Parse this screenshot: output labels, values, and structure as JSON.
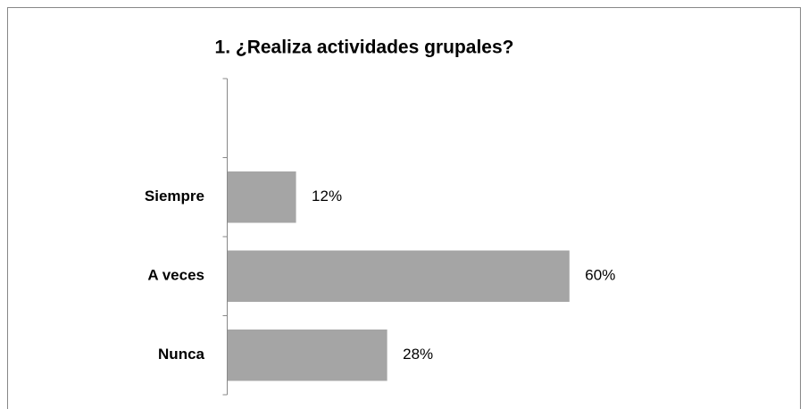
{
  "chart_data": {
    "type": "barh",
    "title": "1.  ¿Realiza actividades grupales?",
    "categories": [
      null,
      "Siempre",
      "A veces",
      "Nunca"
    ],
    "values": [
      null,
      12,
      60,
      28
    ],
    "value_labels": [
      null,
      "12%",
      "60%",
      "28%"
    ],
    "color": "#a5a5a5"
  }
}
